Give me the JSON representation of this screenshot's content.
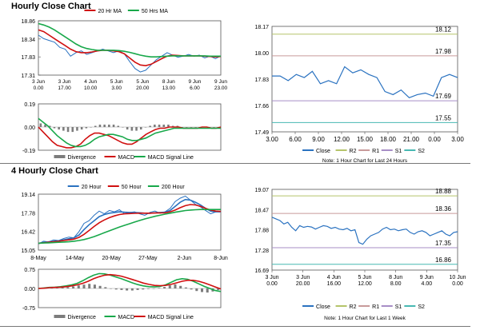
{
  "headers": {
    "hourly": "Hourly Close Chart",
    "four_hourly": "4 Hourly Close Chart"
  },
  "colors": {
    "close": "#2a72c0",
    "ma_short": "#d01010",
    "ma_long": "#18a84a",
    "ma_longer": "#18a84a",
    "divergence": "#7c7c7c",
    "r2": "#b5c46a",
    "r1": "#c89a9a",
    "s1": "#a78ec6",
    "s2": "#47b8b2"
  },
  "chart_data": [
    {
      "id": "c1",
      "type": "line",
      "title": "Hourly Close Chart",
      "legend": [
        "20 Hr MA",
        "50 Hrs MA"
      ],
      "yticks": [
        "18.86",
        "18.34",
        "17.83",
        "17.31"
      ],
      "ylim": [
        17.31,
        18.86
      ],
      "xticks": [
        [
          "3 Jun",
          "0.00"
        ],
        [
          "3 Jun",
          "17.00"
        ],
        [
          "4 Jun",
          "10.00"
        ],
        [
          "5 Jun",
          "3.00"
        ],
        [
          "5 Jun",
          "20.00"
        ],
        [
          "8 Jun",
          "13.00"
        ],
        [
          "9 Jun",
          "6.00"
        ],
        [
          "9 Jun",
          "23.00"
        ]
      ],
      "series": [
        {
          "name": "Close",
          "color": "#2a72c0",
          "values": [
            18.45,
            18.35,
            18.3,
            18.25,
            18.1,
            18.05,
            17.85,
            17.95,
            18.0,
            17.9,
            17.95,
            18.0,
            18.05,
            18.0,
            17.95,
            18.0,
            17.92,
            17.7,
            17.5,
            17.4,
            17.45,
            17.6,
            17.75,
            17.85,
            17.95,
            17.88,
            17.82,
            17.85,
            17.9,
            17.85,
            17.88,
            17.8,
            17.85,
            17.78,
            17.86
          ]
        },
        {
          "name": "20 Hr MA",
          "color": "#d01010",
          "values": [
            18.6,
            18.55,
            18.45,
            18.35,
            18.25,
            18.15,
            18.05,
            17.98,
            17.95,
            17.95,
            17.97,
            18.0,
            18.02,
            18.02,
            18.0,
            17.98,
            17.92,
            17.8,
            17.68,
            17.6,
            17.58,
            17.62,
            17.7,
            17.78,
            17.85,
            17.88,
            17.87,
            17.86,
            17.86,
            17.86,
            17.86,
            17.85,
            17.84,
            17.83,
            17.84
          ]
        },
        {
          "name": "50 Hrs MA",
          "color": "#18a84a",
          "values": [
            18.78,
            18.74,
            18.68,
            18.6,
            18.5,
            18.4,
            18.3,
            18.2,
            18.12,
            18.07,
            18.04,
            18.02,
            18.02,
            18.02,
            18.02,
            18.01,
            17.99,
            17.96,
            17.92,
            17.88,
            17.85,
            17.83,
            17.83,
            17.84,
            17.85,
            17.86,
            17.86,
            17.86,
            17.86,
            17.86,
            17.86,
            17.86,
            17.85,
            17.85,
            17.85
          ]
        }
      ]
    },
    {
      "id": "c2",
      "type": "line",
      "legend": [
        "Divergence",
        "MACD",
        "MACD Signal Line"
      ],
      "yticks": [
        "0.19",
        "0.00",
        "-0.19"
      ],
      "ylim": [
        -0.19,
        0.19
      ],
      "bars": {
        "name": "Divergence",
        "color": "#7c7c7c",
        "values": [
          0.03,
          0.02,
          0.01,
          -0.01,
          -0.02,
          -0.03,
          -0.04,
          -0.04,
          -0.03,
          -0.02,
          -0.01,
          0.0,
          0.01,
          0.02,
          0.02,
          0.02,
          0.02,
          0.01,
          0.0,
          -0.02,
          -0.03,
          -0.03,
          -0.02,
          0.0,
          0.01,
          0.02,
          0.02,
          0.02,
          0.02,
          0.01,
          0.01,
          0.0,
          0.0,
          0.0,
          0.0,
          0.0,
          0.0,
          0.0,
          0.0,
          0.0
        ]
      },
      "series": [
        {
          "name": "MACD",
          "color": "#d01010",
          "values": [
            0.0,
            -0.04,
            -0.08,
            -0.12,
            -0.15,
            -0.16,
            -0.17,
            -0.17,
            -0.16,
            -0.14,
            -0.1,
            -0.07,
            -0.05,
            -0.05,
            -0.06,
            -0.07,
            -0.09,
            -0.11,
            -0.13,
            -0.14,
            -0.14,
            -0.12,
            -0.09,
            -0.06,
            -0.04,
            -0.02,
            -0.01,
            -0.01,
            0.0,
            0.0,
            0.0,
            -0.01,
            -0.01,
            -0.01,
            -0.01,
            0.0,
            0.0,
            -0.01,
            -0.01,
            0.0
          ]
        },
        {
          "name": "MACD Signal Line",
          "color": "#18a84a",
          "values": [
            0.07,
            0.04,
            0.01,
            -0.03,
            -0.07,
            -0.1,
            -0.13,
            -0.15,
            -0.16,
            -0.16,
            -0.15,
            -0.13,
            -0.1,
            -0.08,
            -0.07,
            -0.06,
            -0.06,
            -0.07,
            -0.08,
            -0.1,
            -0.11,
            -0.11,
            -0.1,
            -0.09,
            -0.07,
            -0.05,
            -0.04,
            -0.03,
            -0.02,
            -0.01,
            -0.01,
            -0.01,
            -0.01,
            -0.01,
            -0.01,
            -0.01,
            -0.01,
            -0.01,
            -0.01,
            -0.01
          ]
        }
      ]
    },
    {
      "id": "c3",
      "type": "line",
      "yticks": [
        "18.17",
        "18.00",
        "17.83",
        "17.66",
        "17.49"
      ],
      "ylim": [
        17.49,
        18.17
      ],
      "xticks": [
        "3.00",
        "6.00",
        "9.00",
        "12.00",
        "15.00",
        "18.00",
        "21.00",
        "0.00",
        "3.00"
      ],
      "levels": [
        {
          "name": "R2",
          "value": 18.12,
          "label": "18.12",
          "color": "#b5c46a"
        },
        {
          "name": "R1",
          "value": 17.98,
          "label": "17.98",
          "color": "#c89a9a"
        },
        {
          "name": "S1",
          "value": 17.69,
          "label": "17.69",
          "color": "#a78ec6"
        },
        {
          "name": "S2",
          "value": 17.55,
          "label": "17.55",
          "color": "#47b8b2"
        }
      ],
      "series": [
        {
          "name": "Close",
          "color": "#2a72c0",
          "values": [
            17.85,
            17.85,
            17.82,
            17.86,
            17.84,
            17.88,
            17.8,
            17.82,
            17.8,
            17.91,
            17.87,
            17.89,
            17.86,
            17.84,
            17.75,
            17.73,
            17.76,
            17.71,
            17.73,
            17.74,
            17.72,
            17.84,
            17.86,
            17.84
          ]
        }
      ],
      "legend": [
        "Close",
        "R2",
        "R1",
        "S1",
        "S2"
      ],
      "note": "Note: 1 Hour Chart for Last 24 Hours"
    },
    {
      "id": "c4",
      "type": "line",
      "title": "4 Hourly Close Chart",
      "legend": [
        "20 Hour",
        "50 Hour",
        "200 Hour"
      ],
      "yticks": [
        "19.14",
        "17.78",
        "16.42",
        "15.05"
      ],
      "ylim": [
        15.05,
        19.14
      ],
      "xticks": [
        "8-May",
        "14-May",
        "20-May",
        "27-May",
        "2-Jun",
        "8-Jun"
      ],
      "series": [
        {
          "name": "Close",
          "color": "#2a72c0",
          "values": [
            15.5,
            15.7,
            15.65,
            15.8,
            15.75,
            15.9,
            16.0,
            15.95,
            16.4,
            17.0,
            17.2,
            17.6,
            17.9,
            17.7,
            17.95,
            17.85,
            18.0,
            17.7,
            17.8,
            17.85,
            17.7,
            17.6,
            17.8,
            17.9,
            17.75,
            17.85,
            18.1,
            18.6,
            18.85,
            19.0,
            18.7,
            18.4,
            18.2,
            17.95,
            17.7,
            17.85,
            17.9
          ]
        },
        {
          "name": "20 Hour",
          "color": "#2a72c0",
          "values": [
            15.55,
            15.6,
            15.65,
            15.7,
            15.72,
            15.8,
            15.88,
            15.95,
            16.15,
            16.55,
            16.9,
            17.2,
            17.5,
            17.65,
            17.75,
            17.8,
            17.85,
            17.82,
            17.8,
            17.8,
            17.78,
            17.75,
            17.74,
            17.78,
            17.8,
            17.82,
            17.95,
            18.25,
            18.55,
            18.75,
            18.7,
            18.55,
            18.35,
            18.1,
            17.9,
            17.85,
            17.85
          ]
        },
        {
          "name": "50 Hour",
          "color": "#d01010",
          "values": [
            15.55,
            15.58,
            15.62,
            15.66,
            15.7,
            15.75,
            15.8,
            15.85,
            15.98,
            16.2,
            16.48,
            16.78,
            17.05,
            17.25,
            17.42,
            17.55,
            17.65,
            17.7,
            17.72,
            17.74,
            17.75,
            17.75,
            17.75,
            17.76,
            17.77,
            17.78,
            17.85,
            17.98,
            18.15,
            18.3,
            18.38,
            18.35,
            18.25,
            18.1,
            17.98,
            17.9,
            17.88
          ]
        },
        {
          "name": "200 Hour",
          "color": "#18a84a",
          "values": [
            15.55,
            15.57,
            15.58,
            15.6,
            15.62,
            15.64,
            15.66,
            15.7,
            15.75,
            15.82,
            15.92,
            16.04,
            16.18,
            16.32,
            16.46,
            16.6,
            16.74,
            16.86,
            16.98,
            17.1,
            17.22,
            17.33,
            17.42,
            17.52,
            17.6,
            17.68,
            17.75,
            17.82,
            17.88,
            17.94,
            17.98,
            18.0,
            18.02,
            18.02,
            18.02,
            18.02,
            18.02
          ]
        }
      ]
    },
    {
      "id": "c5",
      "type": "line",
      "legend": [
        "Divergence",
        "MACD",
        "MACD Signal Line"
      ],
      "yticks": [
        "0.75",
        "0.00",
        "-0.75"
      ],
      "ylim": [
        -0.75,
        0.75
      ],
      "bars": {
        "name": "Divergence",
        "color": "#7c7c7c",
        "values": [
          0.0,
          0.01,
          0.01,
          0.02,
          0.03,
          0.05,
          0.08,
          0.12,
          0.15,
          0.18,
          0.15,
          0.1,
          0.05,
          0.0,
          -0.04,
          -0.06,
          -0.08,
          -0.08,
          -0.06,
          -0.04,
          -0.02,
          0.0,
          0.02,
          0.06,
          0.12,
          0.16,
          0.1,
          0.04,
          -0.04,
          -0.1,
          -0.14,
          -0.16,
          -0.12,
          -0.06
        ]
      },
      "series": [
        {
          "name": "MACD",
          "color": "#18a84a",
          "values": [
            0.0,
            0.02,
            0.04,
            0.05,
            0.07,
            0.1,
            0.14,
            0.2,
            0.3,
            0.42,
            0.52,
            0.58,
            0.57,
            0.52,
            0.45,
            0.38,
            0.3,
            0.22,
            0.15,
            0.1,
            0.07,
            0.06,
            0.08,
            0.14,
            0.24,
            0.34,
            0.38,
            0.36,
            0.28,
            0.18,
            0.08,
            0.0,
            -0.08,
            -0.12
          ]
        },
        {
          "name": "MACD Signal Line",
          "color": "#d01010",
          "values": [
            0.0,
            0.01,
            0.03,
            0.04,
            0.05,
            0.07,
            0.1,
            0.14,
            0.2,
            0.28,
            0.38,
            0.46,
            0.52,
            0.54,
            0.52,
            0.48,
            0.42,
            0.35,
            0.28,
            0.21,
            0.16,
            0.12,
            0.11,
            0.12,
            0.16,
            0.22,
            0.28,
            0.32,
            0.32,
            0.28,
            0.22,
            0.14,
            0.06,
            -0.02
          ]
        }
      ]
    },
    {
      "id": "c6",
      "type": "line",
      "yticks": [
        "19.07",
        "18.47",
        "17.88",
        "17.28",
        "16.69"
      ],
      "ylim": [
        16.69,
        19.07
      ],
      "xticks": [
        [
          "3 Jun",
          "0.00"
        ],
        [
          "3 Jun",
          "20.00"
        ],
        [
          "4 Jun",
          "16.00"
        ],
        [
          "5 Jun",
          "12.00"
        ],
        [
          "8 Jun",
          "8.00"
        ],
        [
          "9 Jun",
          "4.00"
        ],
        [
          "10 Jun",
          "0.00"
        ]
      ],
      "levels": [
        {
          "name": "R2",
          "value": 18.88,
          "label": "18.88",
          "color": "#b5c46a"
        },
        {
          "name": "R1",
          "value": 18.36,
          "label": "18.36",
          "color": "#c89a9a"
        },
        {
          "name": "S1",
          "value": 17.35,
          "label": "17.35",
          "color": "#a78ec6"
        },
        {
          "name": "S2",
          "value": 16.86,
          "label": "16.86",
          "color": "#47b8b2"
        }
      ],
      "series": [
        {
          "name": "Close",
          "color": "#2a72c0",
          "values": [
            18.25,
            18.2,
            18.15,
            18.05,
            18.1,
            17.95,
            17.85,
            18.0,
            17.95,
            17.98,
            17.96,
            17.9,
            17.95,
            18.0,
            17.98,
            17.92,
            17.95,
            17.9,
            17.88,
            17.92,
            17.85,
            17.88,
            17.5,
            17.45,
            17.6,
            17.7,
            17.75,
            17.8,
            17.9,
            17.95,
            17.88,
            17.9,
            17.85,
            17.88,
            17.9,
            17.8,
            17.75,
            17.82,
            17.85,
            17.8,
            17.7,
            17.75,
            17.8,
            17.85,
            17.75,
            17.7,
            17.8,
            17.82
          ]
        }
      ],
      "legend": [
        "Close",
        "R2",
        "R1",
        "S1",
        "S2"
      ],
      "note": "Note: 1 Hour Chart for Last 1 Week"
    }
  ]
}
